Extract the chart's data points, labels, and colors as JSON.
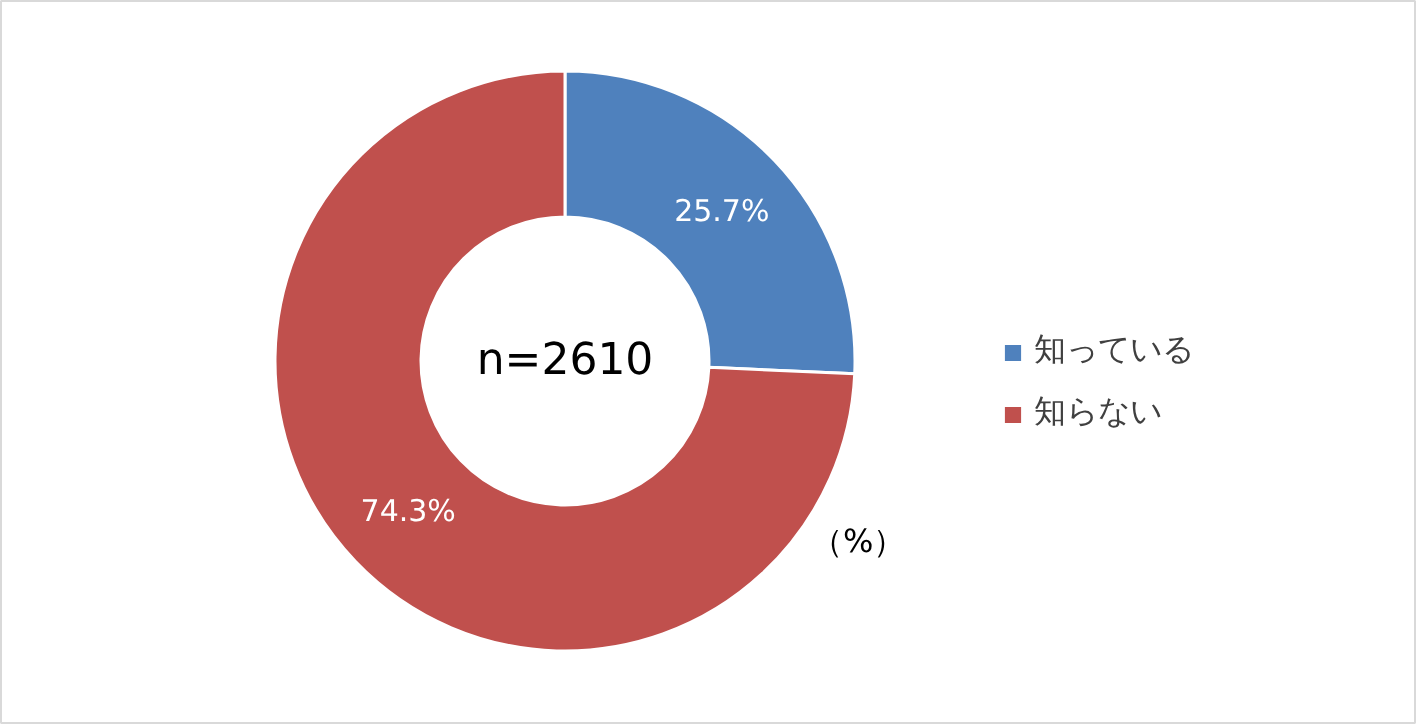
{
  "chart_data": {
    "type": "donut",
    "categories": [
      "知っている",
      "知らない"
    ],
    "values": [
      25.7,
      74.3
    ],
    "colors": [
      "#4f81bd",
      "#c0504d"
    ],
    "value_labels": [
      "25.7%",
      "74.3%"
    ],
    "legend": "right",
    "annotations": [
      "n=2610",
      "（%）"
    ]
  }
}
